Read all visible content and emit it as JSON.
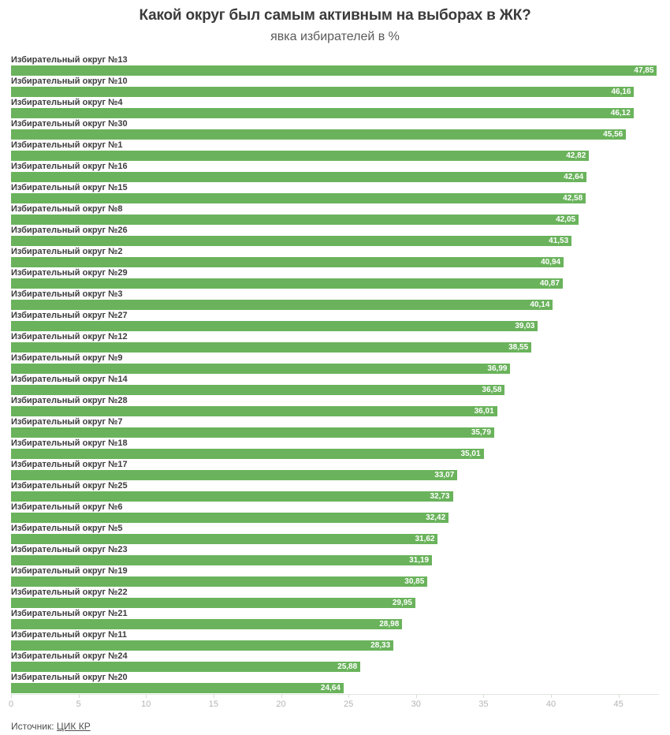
{
  "title": "Какой округ был самым активным на выборах в ЖК?",
  "subtitle": "явка избирателей в %",
  "footer": {
    "source_label": "Источник:",
    "source_link": "ЦИК КР"
  },
  "colors": {
    "bar": "#6ab35c",
    "bar_value_text": "#ffffff",
    "title_text": "#3b3b3b",
    "subtitle_text": "#5a5a5a",
    "axis_tick_label": "#b4b4b4"
  },
  "chart_data": {
    "type": "bar",
    "orientation": "horizontal",
    "title": "Какой округ был самым активным на выборах в ЖК?",
    "subtitle": "явка избирателей в %",
    "xlabel": "",
    "ylabel": "",
    "unit": "%",
    "xlim": [
      0,
      48
    ],
    "x_ticks": [
      0,
      5,
      10,
      15,
      20,
      25,
      30,
      35,
      40,
      45
    ],
    "grid": false,
    "legend": false,
    "categories": [
      "Избирательный округ №13",
      "Избирательный округ №10",
      "Избирательный округ №4",
      "Избирательный округ №30",
      "Избирательный округ №1",
      "Избирательный округ №16",
      "Избирательный округ №15",
      "Избирательный округ №8",
      "Избирательный округ №26",
      "Избирательный округ №2",
      "Избирательный округ №29",
      "Избирательный округ №3",
      "Избирательный округ №27",
      "Избирательный округ №12",
      "Избирательный округ №9",
      "Избирательный округ №14",
      "Избирательный округ №28",
      "Избирательный округ №7",
      "Избирательный округ №18",
      "Избирательный округ №17",
      "Избирательный округ №25",
      "Избирательный округ №6",
      "Избирательный округ №5",
      "Избирательный округ №23",
      "Избирательный округ №19",
      "Избирательный округ №22",
      "Избирательный округ №21",
      "Избирательный округ №11",
      "Избирательный округ №24",
      "Избирательный округ №20"
    ],
    "values": [
      47.85,
      46.16,
      46.12,
      45.56,
      42.82,
      42.64,
      42.58,
      42.05,
      41.53,
      40.94,
      40.87,
      40.14,
      39.03,
      38.55,
      36.99,
      36.58,
      36.01,
      35.79,
      35.01,
      33.07,
      32.73,
      32.42,
      31.62,
      31.19,
      30.85,
      29.95,
      28.98,
      28.33,
      25.88,
      24.64
    ],
    "value_labels": [
      "47,85",
      "46,16",
      "46,12",
      "45,56",
      "42,82",
      "42,64",
      "42,58",
      "42,05",
      "41,53",
      "40,94",
      "40,87",
      "40,14",
      "39,03",
      "38,55",
      "36,99",
      "36,58",
      "36,01",
      "35,79",
      "35,01",
      "33,07",
      "32,73",
      "32,42",
      "31,62",
      "31,19",
      "30,85",
      "29,95",
      "28,98",
      "28,33",
      "25,88",
      "24,64"
    ]
  }
}
